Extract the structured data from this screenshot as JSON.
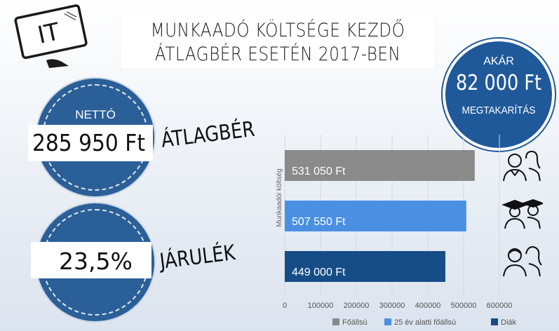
{
  "logo": {
    "text": "IT"
  },
  "title": {
    "line1": "MUNKAADÓ KÖLTSÉGE KEZDŐ",
    "line2": "ÁTLAGBÉR ESETÉN 2017-BEN"
  },
  "savings": {
    "line1": "AKÁR",
    "line2": "82 000 Ft",
    "line3": "MEGTAKARÍTÁS"
  },
  "net": {
    "caption": "NETTÓ",
    "value": "285 950 Ft",
    "label": "ÁTLAGBÉR"
  },
  "contribution": {
    "value": "23,5%",
    "label": "JÁRULÉK"
  },
  "colors": {
    "primary_blue": "#20599a",
    "bar_gray": "#8a8a8a",
    "bar_light_blue": "#4a90e2",
    "bar_dark_blue": "#164d87"
  },
  "chart_data": {
    "type": "bar",
    "orientation": "horizontal",
    "ylabel": "Munkaadói költség",
    "xlabel": "",
    "xlim": [
      0,
      600000
    ],
    "xticks": [
      0,
      100000,
      200000,
      300000,
      400000,
      500000,
      600000
    ],
    "grid": true,
    "legend_position": "bottom",
    "bars": [
      {
        "name": "Főállsú",
        "value": 531050,
        "label": "531 050 Ft",
        "color": "#8a8a8a",
        "icon": "worker-couple-icon"
      },
      {
        "name": "25 év alatti főállsú",
        "value": 507550,
        "label": "507 550 Ft",
        "color": "#4a90e2",
        "icon": "graduates-icon"
      },
      {
        "name": "Diák",
        "value": 449000,
        "label": "449 000 Ft",
        "color": "#164d87",
        "icon": "students-icon"
      }
    ],
    "legend": [
      "Főállsú",
      "25 év alatti főállsú",
      "Diák"
    ]
  }
}
